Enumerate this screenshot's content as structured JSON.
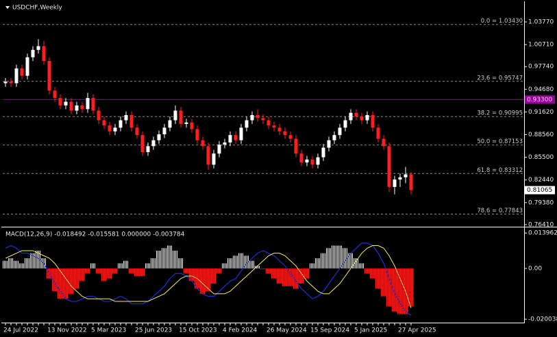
{
  "chart_data": [
    {
      "type": "candlestick",
      "title": "USDCHF,Weekly",
      "categories": [
        "24 Jul 2022",
        null,
        null,
        null,
        null,
        null,
        null,
        null,
        "13 Nov 2022",
        null,
        null,
        null,
        null,
        null,
        null,
        null,
        "5 Mar 2023",
        null,
        null,
        null,
        null,
        null,
        null,
        null,
        "25 Jun 2023",
        null,
        null,
        null,
        null,
        null,
        null,
        null,
        "15 Oct 2023",
        null,
        null,
        null,
        null,
        null,
        null,
        null,
        "4 Feb 2024",
        null,
        null,
        null,
        null,
        null,
        null,
        null,
        "26 May 2024",
        null,
        null,
        null,
        null,
        null,
        null,
        null,
        "15 Sep 2024",
        null,
        null,
        null,
        null,
        null,
        null,
        null,
        "5 Jan 2025",
        null,
        null,
        null,
        null,
        null,
        null,
        null,
        "27 Apr 2025",
        null,
        null
      ],
      "open": [
        0.955,
        0.957,
        0.955,
        0.975,
        0.965,
        0.99,
        1.0,
        1.005,
        0.985,
        0.945,
        0.935,
        0.925,
        0.93,
        0.918,
        0.925,
        0.92,
        0.935,
        0.918,
        0.905,
        0.898,
        0.89,
        0.895,
        0.905,
        0.912,
        0.895,
        0.885,
        0.862,
        0.87,
        0.878,
        0.886,
        0.895,
        0.905,
        0.918,
        0.9,
        0.902,
        0.893,
        0.878,
        0.87,
        0.845,
        0.86,
        0.872,
        0.875,
        0.885,
        0.878,
        0.895,
        0.905,
        0.912,
        0.908,
        0.905,
        0.898,
        0.895,
        0.89,
        0.885,
        0.88,
        0.86,
        0.848,
        0.852,
        0.845,
        0.855,
        0.868,
        0.878,
        0.885,
        0.895,
        0.905,
        0.915,
        0.91,
        0.905,
        0.912,
        0.895,
        0.88,
        0.87,
        0.815,
        0.825,
        0.828,
        0.832
      ],
      "high": [
        0.962,
        0.962,
        0.98,
        0.98,
        0.995,
        1.005,
        1.0145,
        1.012,
        0.99,
        0.95,
        0.94,
        0.935,
        0.935,
        0.93,
        0.93,
        0.942,
        0.94,
        0.923,
        0.91,
        0.903,
        0.9,
        0.91,
        0.917,
        0.917,
        0.9,
        0.89,
        0.875,
        0.883,
        0.891,
        0.9,
        0.91,
        0.925,
        0.923,
        0.907,
        0.907,
        0.898,
        0.883,
        0.875,
        0.865,
        0.877,
        0.88,
        0.89,
        0.89,
        0.9,
        0.91,
        0.917,
        0.92,
        0.913,
        0.91,
        0.903,
        0.9,
        0.895,
        0.89,
        0.885,
        0.865,
        0.857,
        0.857,
        0.86,
        0.873,
        0.883,
        0.89,
        0.9,
        0.91,
        0.92,
        0.92,
        0.915,
        0.917,
        0.917,
        0.9,
        0.885,
        0.875,
        0.83,
        0.833,
        0.842,
        0.835
      ],
      "low": [
        0.95,
        0.95,
        0.95,
        0.96,
        0.96,
        0.985,
        0.995,
        0.98,
        0.94,
        0.93,
        0.92,
        0.92,
        0.913,
        0.913,
        0.915,
        0.915,
        0.913,
        0.9,
        0.893,
        0.885,
        0.885,
        0.89,
        0.9,
        0.89,
        0.88,
        0.857,
        0.857,
        0.865,
        0.873,
        0.881,
        0.89,
        0.9,
        0.895,
        0.895,
        0.888,
        0.873,
        0.865,
        0.838,
        0.84,
        0.855,
        0.867,
        0.87,
        0.873,
        0.873,
        0.89,
        0.9,
        0.903,
        0.9,
        0.893,
        0.89,
        0.885,
        0.88,
        0.875,
        0.855,
        0.843,
        0.843,
        0.84,
        0.84,
        0.85,
        0.863,
        0.873,
        0.88,
        0.89,
        0.9,
        0.905,
        0.9,
        0.9,
        0.89,
        0.875,
        0.865,
        0.808,
        0.805,
        0.815,
        0.82,
        0.805
      ],
      "close": [
        0.957,
        0.955,
        0.975,
        0.965,
        0.99,
        1.0,
        1.005,
        0.985,
        0.945,
        0.935,
        0.925,
        0.93,
        0.918,
        0.925,
        0.92,
        0.935,
        0.918,
        0.905,
        0.898,
        0.89,
        0.895,
        0.905,
        0.912,
        0.895,
        0.885,
        0.862,
        0.87,
        0.878,
        0.886,
        0.895,
        0.905,
        0.918,
        0.9,
        0.902,
        0.893,
        0.878,
        0.87,
        0.845,
        0.86,
        0.872,
        0.875,
        0.885,
        0.878,
        0.895,
        0.905,
        0.912,
        0.908,
        0.905,
        0.898,
        0.895,
        0.89,
        0.885,
        0.88,
        0.86,
        0.848,
        0.852,
        0.845,
        0.855,
        0.868,
        0.878,
        0.885,
        0.895,
        0.905,
        0.915,
        0.91,
        0.905,
        0.912,
        0.895,
        0.88,
        0.87,
        0.815,
        0.825,
        0.828,
        0.832,
        0.81065
      ],
      "up_color": "#ffffff",
      "down_color": "#ff1e1e",
      "ylim": [
        0.7622,
        1.0636
      ],
      "yticks": [
        {
          "value": 1.0377,
          "label": "1.03770"
        },
        {
          "value": 1.0071,
          "label": "1.00710"
        },
        {
          "value": 0.9774,
          "label": "0.97740"
        },
        {
          "value": 0.9468,
          "label": "0.94680"
        },
        {
          "value": 0.9162,
          "label": "0.91620"
        },
        {
          "value": 0.8856,
          "label": "0.88560"
        },
        {
          "value": 0.855,
          "label": "0.85500"
        },
        {
          "value": 0.8244,
          "label": "0.82440"
        },
        {
          "value": 0.7938,
          "label": "0.79380"
        },
        {
          "value": 0.7641,
          "label": "0.76410"
        }
      ],
      "fib_levels": [
        {
          "value": 1.0343,
          "label": "0.0 = 1.03430"
        },
        {
          "value": 0.95747,
          "label": "23.6 = 0.95747"
        },
        {
          "value": 0.90995,
          "label": "38.2 = 0.90995"
        },
        {
          "value": 0.87153,
          "label": "50.0 = 0.87153"
        },
        {
          "value": 0.83312,
          "label": "61.8 = 0.83312"
        },
        {
          "value": 0.77843,
          "label": "78.6 = 0.77843"
        }
      ],
      "fib_color": "#8a8a8a",
      "horizontal_line": {
        "value": 0.933,
        "label": "0.93300",
        "color": "#9a009a"
      }
    },
    {
      "type": "macd",
      "title": "MACD(12,26,9) -0.018492 -0.015581 0.000000 -0.003784",
      "series": [
        {
          "kind": "histogram",
          "positive_color": "#ffffff",
          "negative_color": "#ff2020",
          "values": [
            0.003,
            0.004,
            0.003,
            0.002,
            0.004,
            0.006,
            0.007,
            0.004,
            -0.004,
            -0.009,
            -0.012,
            -0.012,
            -0.01,
            -0.008,
            -0.005,
            -0.002,
            0.002,
            -0.002,
            -0.005,
            -0.004,
            -0.002,
            0.002,
            0.003,
            -0.002,
            -0.003,
            -0.003,
            0.002,
            0.004,
            0.007,
            0.008,
            0.009,
            0.007,
            0.004,
            -0.002,
            -0.005,
            -0.008,
            -0.01,
            -0.009,
            -0.006,
            -0.002,
            0.002,
            0.004,
            0.005,
            0.006,
            0.005,
            0.003,
            0.001,
            0.0,
            -0.002,
            -0.004,
            -0.006,
            -0.007,
            -0.007,
            -0.008,
            -0.006,
            -0.004,
            0.002,
            0.004,
            0.006,
            0.008,
            0.009,
            0.009,
            0.008,
            0.006,
            0.004,
            0.002,
            -0.002,
            -0.004,
            -0.008,
            -0.011,
            -0.015,
            -0.017,
            -0.018,
            -0.018,
            -0.015
          ]
        },
        {
          "kind": "line",
          "color": "#2038ff",
          "values": [
            0.008,
            0.009,
            0.008,
            0.006,
            0.006,
            0.005,
            0.004,
            0.002,
            -0.002,
            -0.006,
            -0.009,
            -0.012,
            -0.013,
            -0.013,
            -0.012,
            -0.011,
            -0.011,
            -0.012,
            -0.013,
            -0.013,
            -0.012,
            -0.011,
            -0.012,
            -0.014,
            -0.014,
            -0.014,
            -0.013,
            -0.011,
            -0.009,
            -0.007,
            -0.004,
            -0.002,
            -0.002,
            -0.003,
            -0.005,
            -0.008,
            -0.01,
            -0.011,
            -0.011,
            -0.009,
            -0.007,
            -0.005,
            -0.004,
            -0.001,
            0.002,
            0.004,
            0.006,
            0.007,
            0.006,
            0.005,
            0.003,
            0.001,
            -0.002,
            -0.005,
            -0.008,
            -0.01,
            -0.012,
            -0.011,
            -0.009,
            -0.006,
            -0.003,
            0.0,
            0.003,
            0.006,
            0.008,
            0.01,
            0.01,
            0.009,
            0.006,
            0.002,
            -0.004,
            -0.01,
            -0.014,
            -0.017,
            -0.018492
          ]
        },
        {
          "kind": "line",
          "color": "#ffee55",
          "values": [
            0.004,
            0.005,
            0.006,
            0.007,
            0.007,
            0.007,
            0.006,
            0.005,
            0.004,
            0.002,
            -0.001,
            -0.004,
            -0.007,
            -0.009,
            -0.011,
            -0.012,
            -0.012,
            -0.012,
            -0.012,
            -0.012,
            -0.013,
            -0.013,
            -0.013,
            -0.013,
            -0.013,
            -0.013,
            -0.013,
            -0.012,
            -0.011,
            -0.01,
            -0.008,
            -0.006,
            -0.004,
            -0.003,
            -0.003,
            -0.004,
            -0.006,
            -0.008,
            -0.01,
            -0.01,
            -0.01,
            -0.009,
            -0.007,
            -0.005,
            -0.003,
            -0.001,
            0.001,
            0.003,
            0.005,
            0.006,
            0.006,
            0.005,
            0.003,
            0.001,
            -0.002,
            -0.005,
            -0.007,
            -0.009,
            -0.01,
            -0.01,
            -0.008,
            -0.006,
            -0.003,
            0.0,
            0.003,
            0.006,
            0.008,
            0.009,
            0.009,
            0.008,
            0.005,
            0.001,
            -0.004,
            -0.009,
            -0.015581
          ]
        }
      ],
      "ylim": [
        -0.0211,
        0.0159
      ],
      "yticks": [
        {
          "value": 0.013962,
          "label": "0.013962"
        },
        {
          "value": 0,
          "label": "0.00"
        },
        {
          "value": -0.020038,
          "label": "-0.020038"
        }
      ]
    }
  ]
}
